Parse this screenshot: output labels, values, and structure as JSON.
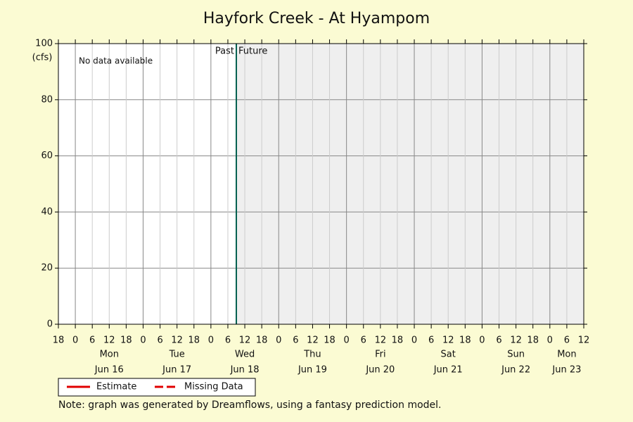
{
  "chart_data": {
    "type": "line",
    "title": "Hayfork Creek - At Hyampom",
    "y_label": "(cfs)",
    "annotation": "No data available",
    "past_label": "Past",
    "future_label": "Future",
    "now": 57,
    "note": "Note: graph was generated by Dreamflows, using a fantasy prediction model.",
    "ylim": [
      0,
      100
    ],
    "yticks": [
      0,
      20,
      40,
      60,
      80,
      100
    ],
    "grid": true,
    "xlim": [
      -6,
      180
    ],
    "xticks": [
      {
        "value": -6,
        "label": "18"
      },
      {
        "value": 0,
        "label": "0"
      },
      {
        "value": 6,
        "label": "6"
      },
      {
        "value": 12,
        "label": "12"
      },
      {
        "value": 18,
        "label": "18"
      },
      {
        "value": 24,
        "label": "0"
      },
      {
        "value": 30,
        "label": "6"
      },
      {
        "value": 36,
        "label": "12"
      },
      {
        "value": 42,
        "label": "18"
      },
      {
        "value": 48,
        "label": "0"
      },
      {
        "value": 54,
        "label": "6"
      },
      {
        "value": 60,
        "label": "12"
      },
      {
        "value": 66,
        "label": "18"
      },
      {
        "value": 72,
        "label": "0"
      },
      {
        "value": 78,
        "label": "6"
      },
      {
        "value": 84,
        "label": "12"
      },
      {
        "value": 90,
        "label": "18"
      },
      {
        "value": 96,
        "label": "0"
      },
      {
        "value": 102,
        "label": "6"
      },
      {
        "value": 108,
        "label": "12"
      },
      {
        "value": 114,
        "label": "18"
      },
      {
        "value": 120,
        "label": "0"
      },
      {
        "value": 126,
        "label": "6"
      },
      {
        "value": 132,
        "label": "12"
      },
      {
        "value": 138,
        "label": "18"
      },
      {
        "value": 144,
        "label": "0"
      },
      {
        "value": 150,
        "label": "6"
      },
      {
        "value": 156,
        "label": "12"
      },
      {
        "value": 162,
        "label": "18"
      },
      {
        "value": 168,
        "label": "0"
      },
      {
        "value": 174,
        "label": "6"
      },
      {
        "value": 180,
        "label": "12"
      }
    ],
    "days": [
      {
        "weekday": "Mon",
        "date": "Jun 16"
      },
      {
        "weekday": "Tue",
        "date": "Jun 17"
      },
      {
        "weekday": "Wed",
        "date": "Jun 18"
      },
      {
        "weekday": "Thu",
        "date": "Jun 19"
      },
      {
        "weekday": "Fri",
        "date": "Jun 20"
      },
      {
        "weekday": "Sat",
        "date": "Jun 21"
      },
      {
        "weekday": "Sun",
        "date": "Jun 22"
      },
      {
        "weekday": "Mon",
        "date": "Jun 23"
      }
    ],
    "series": [
      {
        "name": "Estimate",
        "color": "#e00000",
        "dashed": false,
        "values": []
      },
      {
        "name": "Missing Data",
        "color": "#e00000",
        "dashed": true,
        "values": []
      }
    ]
  }
}
